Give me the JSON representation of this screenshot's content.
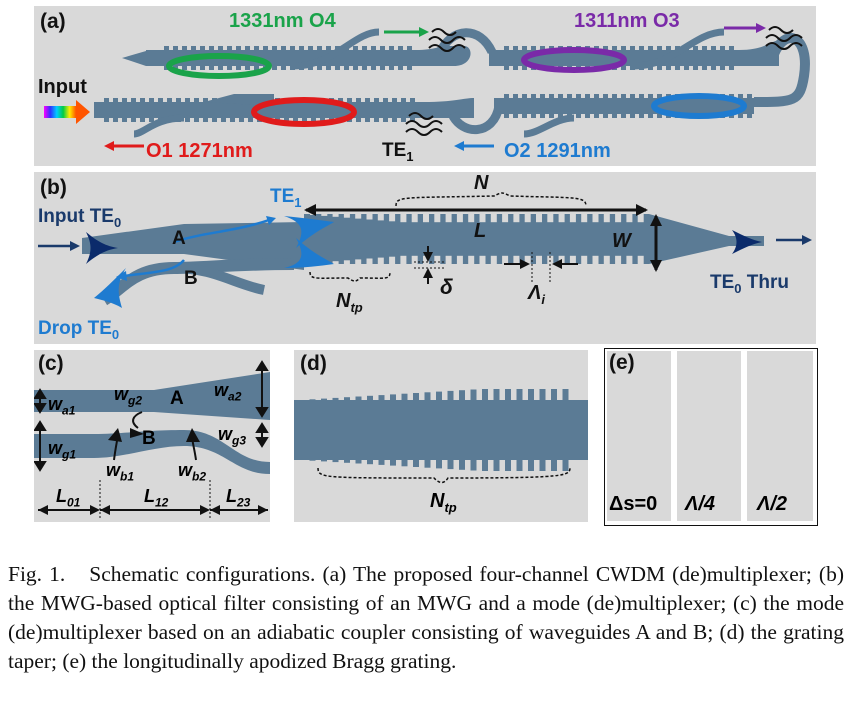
{
  "colors": {
    "panel_bg": "#d9d9d9",
    "waveguide": "#5b7b95",
    "o1_red": "#e01b1b",
    "o2_blue": "#1e7bd0",
    "o3_purple": "#7a2aa8",
    "o4_green": "#1aa34a",
    "navy": "#1a3a6b"
  },
  "panel_a": {
    "label": "(a)",
    "input_label": "Input",
    "o4_label": "1331nm O4",
    "o3_label": "1311nm O3",
    "o1_label": "O1 1271nm",
    "o2_label": "O2 1291nm",
    "te1_label": "TE",
    "te1_sub": "1"
  },
  "panel_b": {
    "label": "(b)",
    "input_label": "Input TE",
    "input_sub": "0",
    "te1_label": "TE",
    "te1_sub": "1",
    "n_label": "N",
    "l_label": "L",
    "w_label": "W",
    "a_label": "A",
    "b_label": "B",
    "ntp_label": "N",
    "ntp_sub": "tp",
    "delta_label": "δ",
    "lambda_label": "Λ",
    "lambda_sub": "i",
    "thru_label": "TE",
    "thru_sub": "0",
    "thru_suffix": " Thru",
    "drop_label": "Drop TE",
    "drop_sub": "0"
  },
  "panel_c": {
    "label": "(c)",
    "wa1": "w",
    "wa1_sub": "a1",
    "wg2": "w",
    "wg2_sub": "g2",
    "a_label": "A",
    "wa2": "w",
    "wa2_sub": "a2",
    "wg1": "w",
    "wg1_sub": "g1",
    "b_label": "B",
    "wg3": "w",
    "wg3_sub": "g3",
    "wb1": "w",
    "wb1_sub": "b1",
    "wb2": "w",
    "wb2_sub": "b2",
    "l01": "L",
    "l01_sub": "01",
    "l12": "L",
    "l12_sub": "12",
    "l23": "L",
    "l23_sub": "23"
  },
  "panel_d": {
    "label": "(d)",
    "ntp": "N",
    "ntp_sub": "tp"
  },
  "panel_e": {
    "label": "(e)",
    "ds_label": "Δs=0",
    "q_label": "Λ/4",
    "h_label": "Λ/2"
  },
  "caption": {
    "title": "Fig. 1.",
    "text": "Schematic configurations. (a) The proposed four-channel CWDM (de)multiplexer; (b) the MWG-based optical filter consisting of an MWG and a mode (de)multiplexer; (c) the mode (de)multiplexer based on an adiabatic coupler consisting of waveguides A and B; (d) the grating taper; (e) the longitudinally apodized Bragg grating."
  }
}
